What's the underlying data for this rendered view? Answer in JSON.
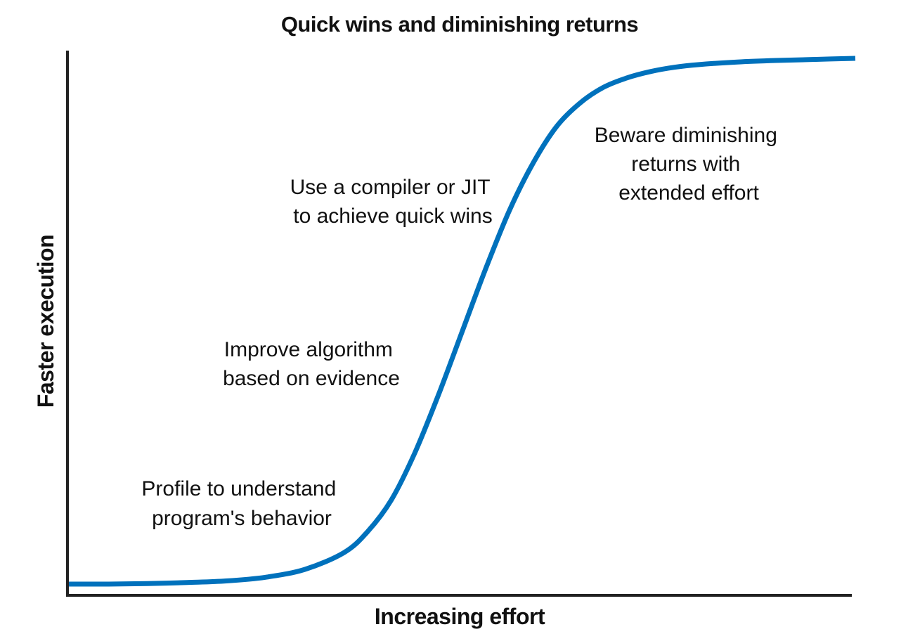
{
  "chart_data": {
    "type": "line",
    "title": "Quick wins and diminishing returns",
    "xlabel": "Increasing effort",
    "ylabel": "Faster execution",
    "grid": false,
    "legend": "none",
    "line_color": "#0071BC",
    "series": [
      {
        "x": [
          0.0,
          0.05,
          0.1,
          0.15,
          0.2,
          0.25,
          0.3,
          0.35,
          0.38,
          0.41,
          0.44,
          0.47,
          0.5,
          0.53,
          0.56,
          0.59,
          0.62,
          0.65,
          0.68,
          0.71,
          0.74,
          0.77,
          0.8,
          0.85,
          0.9,
          0.95,
          1.0
        ],
        "y": [
          0.0,
          0.0,
          0.001,
          0.003,
          0.006,
          0.013,
          0.028,
          0.06,
          0.1,
          0.16,
          0.25,
          0.36,
          0.48,
          0.6,
          0.71,
          0.8,
          0.87,
          0.915,
          0.945,
          0.963,
          0.975,
          0.983,
          0.988,
          0.993,
          0.996,
          0.998,
          1.0
        ]
      }
    ],
    "annotations": [
      {
        "lines": [
          "Profile to understand",
          "program's behavior"
        ]
      },
      {
        "lines": [
          "Improve algorithm",
          "based on evidence"
        ]
      },
      {
        "lines": [
          "Use a compiler or JIT",
          "to achieve quick wins"
        ]
      },
      {
        "lines": [
          "Beware diminishing",
          "returns with",
          "extended effort"
        ]
      }
    ]
  }
}
